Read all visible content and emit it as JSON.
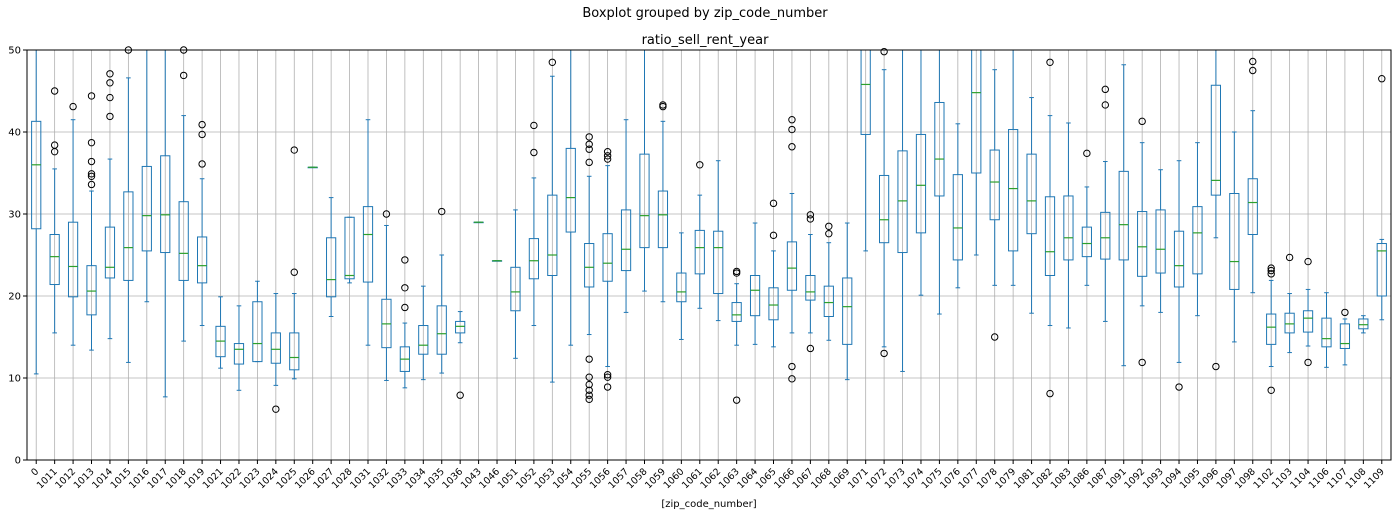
{
  "chart_data": {
    "type": "boxplot",
    "suptitle": "Boxplot grouped by zip_code_number",
    "title": "ratio_sell_rent_year",
    "xlabel": "[zip_code_number]",
    "ylabel": "",
    "ylim": [
      0,
      50
    ],
    "yticks": [
      0,
      10,
      20,
      30,
      40,
      50
    ],
    "grid": true,
    "colors": {
      "box": "#1f77b4",
      "median": "#2ca02c",
      "grid": "#b0b0b0",
      "flier": "#000000"
    },
    "categories": [
      "0",
      "1011",
      "1012",
      "1013",
      "1014",
      "1015",
      "1016",
      "1017",
      "1018",
      "1019",
      "1021",
      "1022",
      "1023",
      "1024",
      "1025",
      "1026",
      "1027",
      "1028",
      "1031",
      "1032",
      "1033",
      "1034",
      "1035",
      "1036",
      "1043",
      "1046",
      "1051",
      "1052",
      "1053",
      "1054",
      "1055",
      "1056",
      "1057",
      "1058",
      "1059",
      "1060",
      "1061",
      "1062",
      "1063",
      "1064",
      "1065",
      "1066",
      "1067",
      "1068",
      "1069",
      "1071",
      "1072",
      "1073",
      "1074",
      "1075",
      "1076",
      "1077",
      "1078",
      "1079",
      "1081",
      "1082",
      "1083",
      "1086",
      "1087",
      "1091",
      "1092",
      "1093",
      "1094",
      "1095",
      "1096",
      "1097",
      "1098",
      "1102",
      "1103",
      "1104",
      "1106",
      "1107",
      "1108",
      "1109"
    ],
    "boxes": [
      {
        "whislo": 10.5,
        "q1": 28.2,
        "med": 36,
        "q3": 41.3,
        "whishi": 50,
        "fliers": []
      },
      {
        "whislo": 15.5,
        "q1": 21.4,
        "med": 24.8,
        "q3": 27.5,
        "whishi": 35.5,
        "fliers": [
          37.6,
          38.4,
          45
        ]
      },
      {
        "whislo": 14,
        "q1": 19.9,
        "med": 23.6,
        "q3": 29,
        "whishi": 41.5,
        "fliers": [
          43.1
        ]
      },
      {
        "whislo": 13.4,
        "q1": 17.7,
        "med": 20.6,
        "q3": 23.7,
        "whishi": 32.8,
        "fliers": [
          33.6,
          34.6,
          34.9,
          36.4,
          38.7,
          44.4
        ]
      },
      {
        "whislo": 14.8,
        "q1": 22.2,
        "med": 23.5,
        "q3": 28.4,
        "whishi": 36.7,
        "fliers": [
          41.9,
          44.2,
          46,
          47.1
        ]
      },
      {
        "whislo": 11.9,
        "q1": 21.9,
        "med": 25.9,
        "q3": 32.7,
        "whishi": 46.6,
        "fliers": [
          50
        ]
      },
      {
        "whislo": 19.3,
        "q1": 25.5,
        "med": 29.8,
        "q3": 35.8,
        "whishi": 50,
        "fliers": []
      },
      {
        "whislo": 7.7,
        "q1": 25.3,
        "med": 29.9,
        "q3": 37.1,
        "whishi": 50,
        "fliers": []
      },
      {
        "whislo": 14.5,
        "q1": 21.9,
        "med": 25.2,
        "q3": 31.5,
        "whishi": 42,
        "fliers": [
          46.9,
          50
        ]
      },
      {
        "whislo": 16.4,
        "q1": 21.6,
        "med": 23.7,
        "q3": 27.2,
        "whishi": 34.3,
        "fliers": [
          36.1,
          39.7,
          40.9
        ]
      },
      {
        "whislo": 11.2,
        "q1": 12.6,
        "med": 14.5,
        "q3": 16.3,
        "whishi": 19.9,
        "fliers": []
      },
      {
        "whislo": 8.5,
        "q1": 11.7,
        "med": 13.5,
        "q3": 14.2,
        "whishi": 18.8,
        "fliers": []
      },
      {
        "whislo": 12,
        "q1": 12,
        "med": 14.2,
        "q3": 19.3,
        "whishi": 21.8,
        "fliers": []
      },
      {
        "whislo": 9.1,
        "q1": 11.8,
        "med": 13.5,
        "q3": 15.5,
        "whishi": 20.3,
        "fliers": [
          6.2
        ]
      },
      {
        "whislo": 9.9,
        "q1": 11,
        "med": 12.5,
        "q3": 15.5,
        "whishi": 20.3,
        "fliers": [
          22.9,
          37.8
        ]
      },
      {
        "whislo": 35.7,
        "q1": 35.7,
        "med": 35.7,
        "q3": 35.7,
        "whishi": 35.7,
        "fliers": []
      },
      {
        "whislo": 17.5,
        "q1": 19.9,
        "med": 22,
        "q3": 27.1,
        "whishi": 32,
        "fliers": []
      },
      {
        "whislo": 21.6,
        "q1": 22.1,
        "med": 22.5,
        "q3": 29.6,
        "whishi": 29.6,
        "fliers": []
      },
      {
        "whislo": 14,
        "q1": 21.7,
        "med": 27.5,
        "q3": 30.9,
        "whishi": 41.5,
        "fliers": []
      },
      {
        "whislo": 9.7,
        "q1": 13.7,
        "med": 16.6,
        "q3": 19.6,
        "whishi": 28.6,
        "fliers": [
          30
        ]
      },
      {
        "whislo": 8.8,
        "q1": 10.8,
        "med": 12.3,
        "q3": 13.8,
        "whishi": 16.7,
        "fliers": [
          18.6,
          21,
          24.4
        ]
      },
      {
        "whislo": 9.8,
        "q1": 12.9,
        "med": 14,
        "q3": 16.4,
        "whishi": 21.2,
        "fliers": []
      },
      {
        "whislo": 10.6,
        "q1": 12.9,
        "med": 15.4,
        "q3": 18.8,
        "whishi": 25,
        "fliers": [
          30.3
        ]
      },
      {
        "whislo": 14.3,
        "q1": 15.5,
        "med": 16.3,
        "q3": 16.9,
        "whishi": 18.1,
        "fliers": [
          7.9
        ]
      },
      {
        "whislo": 29,
        "q1": 29,
        "med": 29,
        "q3": 29,
        "whishi": 29,
        "fliers": []
      },
      {
        "whislo": 24.3,
        "q1": 24.3,
        "med": 24.3,
        "q3": 24.3,
        "whishi": 24.3,
        "fliers": []
      },
      {
        "whislo": 12.4,
        "q1": 18.2,
        "med": 20.5,
        "q3": 23.5,
        "whishi": 30.5,
        "fliers": []
      },
      {
        "whislo": 16.4,
        "q1": 22.1,
        "med": 24.3,
        "q3": 27,
        "whishi": 34.4,
        "fliers": [
          37.5,
          40.8
        ]
      },
      {
        "whislo": 9.5,
        "q1": 22.5,
        "med": 25,
        "q3": 32.3,
        "whishi": 46.8,
        "fliers": [
          48.5
        ]
      },
      {
        "whislo": 14,
        "q1": 27.8,
        "med": 32,
        "q3": 38,
        "whishi": 50,
        "fliers": []
      },
      {
        "whislo": 15.3,
        "q1": 21.1,
        "med": 23.5,
        "q3": 26.4,
        "whishi": 34.6,
        "fliers": [
          7.4,
          7.9,
          8.5,
          9.2,
          10.1,
          12.3,
          36.3,
          37.9,
          38.5,
          39.4
        ]
      },
      {
        "whislo": 11.4,
        "q1": 21.8,
        "med": 24,
        "q3": 27.6,
        "whishi": 35.9,
        "fliers": [
          8.9,
          10.1,
          10.4,
          36.7,
          37.1,
          37.6
        ]
      },
      {
        "whislo": 18,
        "q1": 23.1,
        "med": 25.7,
        "q3": 30.5,
        "whishi": 41.5,
        "fliers": []
      },
      {
        "whislo": 20.6,
        "q1": 25.9,
        "med": 29.8,
        "q3": 37.3,
        "whishi": 50,
        "fliers": []
      },
      {
        "whislo": 19.3,
        "q1": 25.9,
        "med": 29.9,
        "q3": 32.8,
        "whishi": 41.3,
        "fliers": [
          43.1,
          43.3
        ]
      },
      {
        "whislo": 14.7,
        "q1": 19.3,
        "med": 20.5,
        "q3": 22.8,
        "whishi": 27.7,
        "fliers": []
      },
      {
        "whislo": 18.5,
        "q1": 22.7,
        "med": 25.9,
        "q3": 28,
        "whishi": 32.3,
        "fliers": [
          36
        ]
      },
      {
        "whislo": 17,
        "q1": 20.3,
        "med": 25.9,
        "q3": 27.9,
        "whishi": 36.5,
        "fliers": []
      },
      {
        "whislo": 14,
        "q1": 16.9,
        "med": 17.7,
        "q3": 19.2,
        "whishi": 21.5,
        "fliers": [
          7.3,
          22.8,
          23
        ]
      },
      {
        "whislo": 14.1,
        "q1": 17.6,
        "med": 20.7,
        "q3": 22.5,
        "whishi": 28.9,
        "fliers": []
      },
      {
        "whislo": 13.8,
        "q1": 17.1,
        "med": 18.9,
        "q3": 21,
        "whishi": 25.5,
        "fliers": [
          27.4,
          31.3
        ]
      },
      {
        "whislo": 15.5,
        "q1": 20.7,
        "med": 23.4,
        "q3": 26.6,
        "whishi": 32.5,
        "fliers": [
          9.9,
          11.4,
          38.2,
          40.3,
          41.5
        ]
      },
      {
        "whislo": 15.5,
        "q1": 19.5,
        "med": 20.5,
        "q3": 22.5,
        "whishi": 27.5,
        "fliers": [
          13.6,
          29.4,
          29.9
        ]
      },
      {
        "whislo": 14.6,
        "q1": 17.5,
        "med": 19.2,
        "q3": 21.2,
        "whishi": 26.5,
        "fliers": [
          27.6,
          28.5
        ]
      },
      {
        "whislo": 9.8,
        "q1": 14.1,
        "med": 18.7,
        "q3": 22.2,
        "whishi": 28.9,
        "fliers": []
      },
      {
        "whislo": 25.5,
        "q1": 39.7,
        "med": 45.8,
        "q3": 50,
        "whishi": 50,
        "fliers": []
      },
      {
        "whislo": 13.8,
        "q1": 26.5,
        "med": 29.3,
        "q3": 34.7,
        "whishi": 47.6,
        "fliers": [
          13,
          49.8
        ]
      },
      {
        "whislo": 10.8,
        "q1": 25.3,
        "med": 31.6,
        "q3": 37.7,
        "whishi": 50,
        "fliers": []
      },
      {
        "whislo": 20.1,
        "q1": 27.7,
        "med": 33.5,
        "q3": 39.7,
        "whishi": 50,
        "fliers": []
      },
      {
        "whislo": 17.8,
        "q1": 32.2,
        "med": 36.7,
        "q3": 43.6,
        "whishi": 50,
        "fliers": []
      },
      {
        "whislo": 21,
        "q1": 24.4,
        "med": 28.3,
        "q3": 34.8,
        "whishi": 41,
        "fliers": []
      },
      {
        "whislo": 25,
        "q1": 35,
        "med": 44.8,
        "q3": 50,
        "whishi": 50,
        "fliers": []
      },
      {
        "whislo": 21.3,
        "q1": 29.3,
        "med": 33.9,
        "q3": 37.8,
        "whishi": 47.6,
        "fliers": [
          15
        ]
      },
      {
        "whislo": 21.3,
        "q1": 25.5,
        "med": 33.1,
        "q3": 40.3,
        "whishi": 50,
        "fliers": []
      },
      {
        "whislo": 17.9,
        "q1": 27.6,
        "med": 31.6,
        "q3": 37.3,
        "whishi": 44.2,
        "fliers": []
      },
      {
        "whislo": 16.4,
        "q1": 22.5,
        "med": 25.4,
        "q3": 32.1,
        "whishi": 42,
        "fliers": [
          8.1,
          48.5
        ]
      },
      {
        "whislo": 16.1,
        "q1": 24.4,
        "med": 27.1,
        "q3": 32.2,
        "whishi": 41.1,
        "fliers": []
      },
      {
        "whislo": 21.3,
        "q1": 24.8,
        "med": 26.4,
        "q3": 28.4,
        "whishi": 33.3,
        "fliers": [
          37.4
        ]
      },
      {
        "whislo": 16.9,
        "q1": 24.5,
        "med": 27.1,
        "q3": 30.2,
        "whishi": 36.4,
        "fliers": [
          43.3,
          45.2
        ]
      },
      {
        "whislo": 11.5,
        "q1": 24.4,
        "med": 28.7,
        "q3": 35.2,
        "whishi": 48.2,
        "fliers": []
      },
      {
        "whislo": 18.8,
        "q1": 22.4,
        "med": 26,
        "q3": 30.3,
        "whishi": 38.7,
        "fliers": [
          11.9,
          41.3
        ]
      },
      {
        "whislo": 18,
        "q1": 22.8,
        "med": 25.7,
        "q3": 30.5,
        "whishi": 35.4,
        "fliers": []
      },
      {
        "whislo": 11.9,
        "q1": 21.1,
        "med": 23.7,
        "q3": 27.9,
        "whishi": 36.5,
        "fliers": [
          8.9
        ]
      },
      {
        "whislo": 17.6,
        "q1": 22.7,
        "med": 27.7,
        "q3": 30.9,
        "whishi": 38.7,
        "fliers": []
      },
      {
        "whislo": 27.1,
        "q1": 32.3,
        "med": 34.1,
        "q3": 45.7,
        "whishi": 50,
        "fliers": [
          11.4
        ]
      },
      {
        "whislo": 14.4,
        "q1": 20.8,
        "med": 24.2,
        "q3": 32.5,
        "whishi": 40,
        "fliers": []
      },
      {
        "whislo": 20.4,
        "q1": 27.5,
        "med": 31.4,
        "q3": 34.3,
        "whishi": 42.6,
        "fliers": [
          47.5,
          48.6
        ]
      },
      {
        "whislo": 11.4,
        "q1": 14.1,
        "med": 16.2,
        "q3": 17.8,
        "whishi": 21.9,
        "fliers": [
          8.5,
          22.7,
          23.1,
          23.4
        ]
      },
      {
        "whislo": 13.1,
        "q1": 15.5,
        "med": 16.6,
        "q3": 17.9,
        "whishi": 20.3,
        "fliers": [
          24.7
        ]
      },
      {
        "whislo": 13.9,
        "q1": 15.6,
        "med": 17.3,
        "q3": 18.2,
        "whishi": 20.8,
        "fliers": [
          11.9,
          24.2
        ]
      },
      {
        "whislo": 11.3,
        "q1": 13.8,
        "med": 14.8,
        "q3": 17.3,
        "whishi": 20.4,
        "fliers": []
      },
      {
        "whislo": 11.6,
        "q1": 13.6,
        "med": 14.2,
        "q3": 16.6,
        "whishi": 17.2,
        "fliers": [
          18
        ]
      },
      {
        "whislo": 15.5,
        "q1": 16,
        "med": 16.5,
        "q3": 17.2,
        "whishi": 17.6,
        "fliers": []
      },
      {
        "whislo": 17.1,
        "q1": 20,
        "med": 25.5,
        "q3": 26.4,
        "whishi": 26.9,
        "fliers": [
          46.5
        ]
      }
    ]
  }
}
